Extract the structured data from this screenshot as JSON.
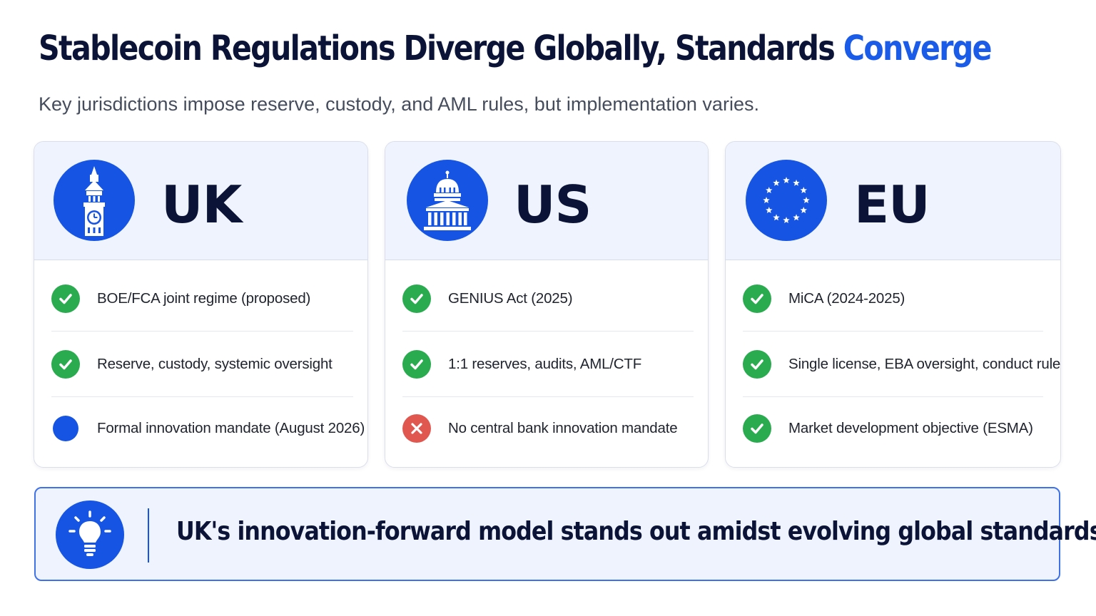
{
  "header": {
    "title_main": "Stablecoin Regulations Diverge Globally, Standards ",
    "title_accent": "Converge",
    "subtitle": "Key jurisdictions impose reserve, custody, and AML rules, but implementation varies."
  },
  "colors": {
    "accent": "#1a5be8",
    "badge": "#1654e3",
    "check": "#2bab4f",
    "cross": "#e0574f",
    "text_dark": "#0b1437"
  },
  "cards": [
    {
      "region": "UK",
      "icon": "big-ben-icon",
      "items": [
        {
          "status": "check",
          "label": "BOE/FCA joint regime (proposed)"
        },
        {
          "status": "check",
          "label": "Reserve, custody, systemic oversight"
        },
        {
          "status": "dot",
          "label": "Formal innovation mandate (August 2026)"
        }
      ]
    },
    {
      "region": "US",
      "icon": "capitol-icon",
      "items": [
        {
          "status": "check",
          "label": "GENIUS Act (2025)"
        },
        {
          "status": "check",
          "label": "1:1 reserves, audits, AML/CTF"
        },
        {
          "status": "cross",
          "label": "No central bank innovation mandate"
        }
      ]
    },
    {
      "region": "EU",
      "icon": "eu-stars-icon",
      "items": [
        {
          "status": "check",
          "label": "MiCA (2024-2025)"
        },
        {
          "status": "check",
          "label": "Single license, EBA oversight, conduct rules"
        },
        {
          "status": "check",
          "label": "Market development objective (ESMA)"
        }
      ]
    }
  ],
  "callout": {
    "icon": "lightbulb-icon",
    "text": "UK's innovation-forward model stands out amidst evolving global standards."
  }
}
